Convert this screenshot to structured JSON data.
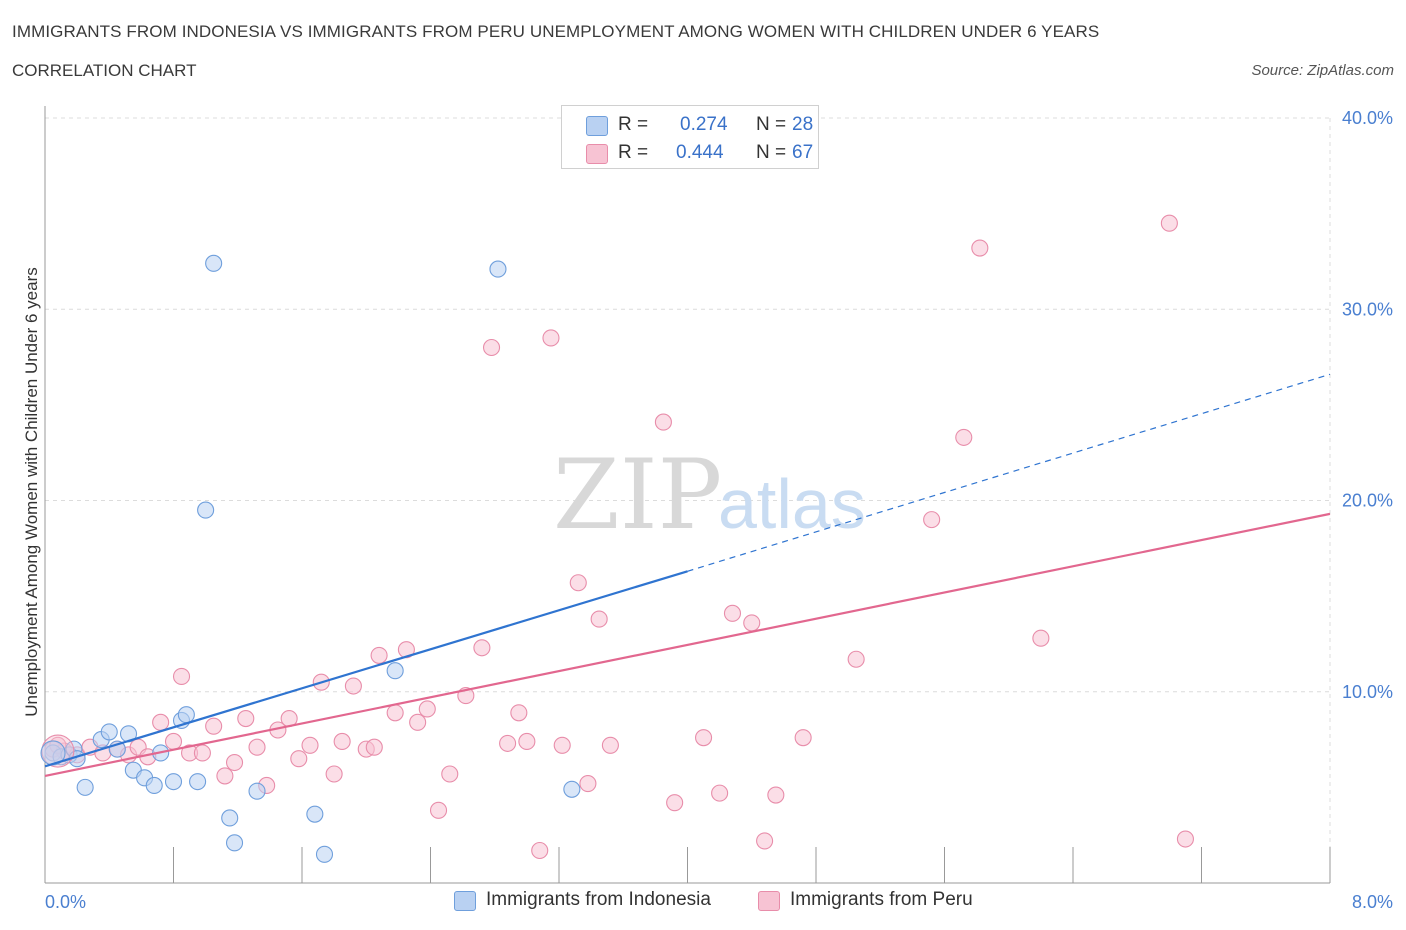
{
  "header": {
    "title": "IMMIGRANTS FROM INDONESIA VS IMMIGRANTS FROM PERU UNEMPLOYMENT AMONG WOMEN WITH CHILDREN UNDER 6 YEARS",
    "subtitle": "CORRELATION CHART",
    "source": "Source: ZipAtlas.com"
  },
  "watermark": {
    "zip": "ZIP",
    "atlas": "atlas"
  },
  "legend": {
    "rows": [
      {
        "r_label": "R =",
        "r_value": "0.274",
        "n_label": "N =",
        "n_value": "28"
      },
      {
        "r_label": "R =",
        "r_value": "0.444",
        "n_label": "N =",
        "n_value": "67"
      }
    ]
  },
  "bottom_legend": {
    "indonesia": "Immigrants from Indonesia",
    "peru": "Immigrants from Peru"
  },
  "colors": {
    "indonesia_fill": "#b9d1f2",
    "indonesia_stroke": "#6f9fdc",
    "indonesia_line": "#2f74d0",
    "peru_fill": "#f7c3d3",
    "peru_stroke": "#e88daa",
    "peru_line": "#e2678f",
    "tick_text": "#4a7fd0",
    "grid": "#dcdcdc"
  },
  "chart_data": {
    "type": "scatter",
    "title": "IMMIGRANTS FROM INDONESIA VS IMMIGRANTS FROM PERU UNEMPLOYMENT AMONG WOMEN WITH CHILDREN UNDER 6 YEARS",
    "xlabel": "",
    "ylabel": "Unemployment Among Women with Children Under 6 years",
    "xlim": [
      0,
      8
    ],
    "ylim": [
      0,
      40
    ],
    "x_tick_labels": [
      "0.0%",
      "8.0%"
    ],
    "y_ticks": [
      10,
      20,
      30,
      40
    ],
    "y_tick_labels": [
      "10.0%",
      "20.0%",
      "30.0%",
      "40.0%"
    ],
    "grid": true,
    "legend_position": "top-center",
    "series": [
      {
        "name": "Immigrants from Indonesia",
        "r": 0.274,
        "n": 28,
        "trend": {
          "x0": 0.0,
          "y0": 6.1,
          "x1": 4.0,
          "y1": 16.3,
          "dash_to_x": 8.0,
          "dash_to_y": 26.6
        },
        "points": [
          [
            0.05,
            6.8
          ],
          [
            0.1,
            6.6
          ],
          [
            0.15,
            6.7
          ],
          [
            0.18,
            7.0
          ],
          [
            0.25,
            5.0
          ],
          [
            0.35,
            7.5
          ],
          [
            0.4,
            7.9
          ],
          [
            0.45,
            7.0
          ],
          [
            0.52,
            7.8
          ],
          [
            0.55,
            5.9
          ],
          [
            0.62,
            5.5
          ],
          [
            0.68,
            5.1
          ],
          [
            0.72,
            6.8
          ],
          [
            0.8,
            5.3
          ],
          [
            0.85,
            8.5
          ],
          [
            0.88,
            8.8
          ],
          [
            0.95,
            5.3
          ],
          [
            1.0,
            19.5
          ],
          [
            1.05,
            32.4
          ],
          [
            1.15,
            3.4
          ],
          [
            1.18,
            2.1
          ],
          [
            1.32,
            4.8
          ],
          [
            1.68,
            3.6
          ],
          [
            1.74,
            1.5
          ],
          [
            2.18,
            11.1
          ],
          [
            2.82,
            32.1
          ],
          [
            3.28,
            4.9
          ],
          [
            0.2,
            6.5
          ]
        ]
      },
      {
        "name": "Immigrants from Peru",
        "r": 0.444,
        "n": 67,
        "trend": {
          "x0": 0.0,
          "y0": 5.6,
          "x1": 8.0,
          "y1": 19.3
        },
        "points": [
          [
            0.05,
            7.0
          ],
          [
            0.12,
            6.9
          ],
          [
            0.2,
            6.7
          ],
          [
            0.28,
            7.1
          ],
          [
            0.36,
            6.8
          ],
          [
            0.45,
            7.0
          ],
          [
            0.52,
            6.7
          ],
          [
            0.58,
            7.1
          ],
          [
            0.64,
            6.6
          ],
          [
            0.72,
            8.4
          ],
          [
            0.8,
            7.4
          ],
          [
            0.85,
            10.8
          ],
          [
            0.9,
            6.8
          ],
          [
            0.98,
            6.8
          ],
          [
            1.05,
            8.2
          ],
          [
            1.12,
            5.6
          ],
          [
            1.18,
            6.3
          ],
          [
            1.25,
            8.6
          ],
          [
            1.32,
            7.1
          ],
          [
            1.38,
            5.1
          ],
          [
            1.45,
            8.0
          ],
          [
            1.52,
            8.6
          ],
          [
            1.58,
            6.5
          ],
          [
            1.65,
            7.2
          ],
          [
            1.72,
            10.5
          ],
          [
            1.8,
            5.7
          ],
          [
            1.85,
            7.4
          ],
          [
            1.92,
            10.3
          ],
          [
            2.0,
            7.0
          ],
          [
            2.05,
            7.1
          ],
          [
            2.08,
            11.9
          ],
          [
            2.18,
            8.9
          ],
          [
            2.25,
            12.2
          ],
          [
            2.32,
            8.4
          ],
          [
            2.38,
            9.1
          ],
          [
            2.45,
            3.8
          ],
          [
            2.52,
            5.7
          ],
          [
            2.62,
            9.8
          ],
          [
            2.72,
            12.3
          ],
          [
            2.78,
            28.0
          ],
          [
            2.88,
            7.3
          ],
          [
            2.95,
            8.9
          ],
          [
            3.0,
            7.4
          ],
          [
            3.08,
            1.7
          ],
          [
            3.15,
            28.5
          ],
          [
            3.22,
            7.2
          ],
          [
            3.32,
            15.7
          ],
          [
            3.38,
            5.2
          ],
          [
            3.45,
            13.8
          ],
          [
            3.52,
            7.2
          ],
          [
            3.85,
            24.1
          ],
          [
            3.92,
            4.2
          ],
          [
            4.1,
            7.6
          ],
          [
            4.2,
            4.7
          ],
          [
            4.28,
            14.1
          ],
          [
            4.4,
            13.6
          ],
          [
            4.48,
            2.2
          ],
          [
            4.55,
            4.6
          ],
          [
            4.72,
            7.6
          ],
          [
            5.05,
            11.7
          ],
          [
            5.52,
            19.0
          ],
          [
            5.72,
            23.3
          ],
          [
            5.82,
            33.2
          ],
          [
            6.2,
            12.8
          ],
          [
            7.0,
            34.5
          ],
          [
            7.1,
            2.3
          ],
          [
            0.08,
            7.2
          ]
        ]
      }
    ]
  }
}
